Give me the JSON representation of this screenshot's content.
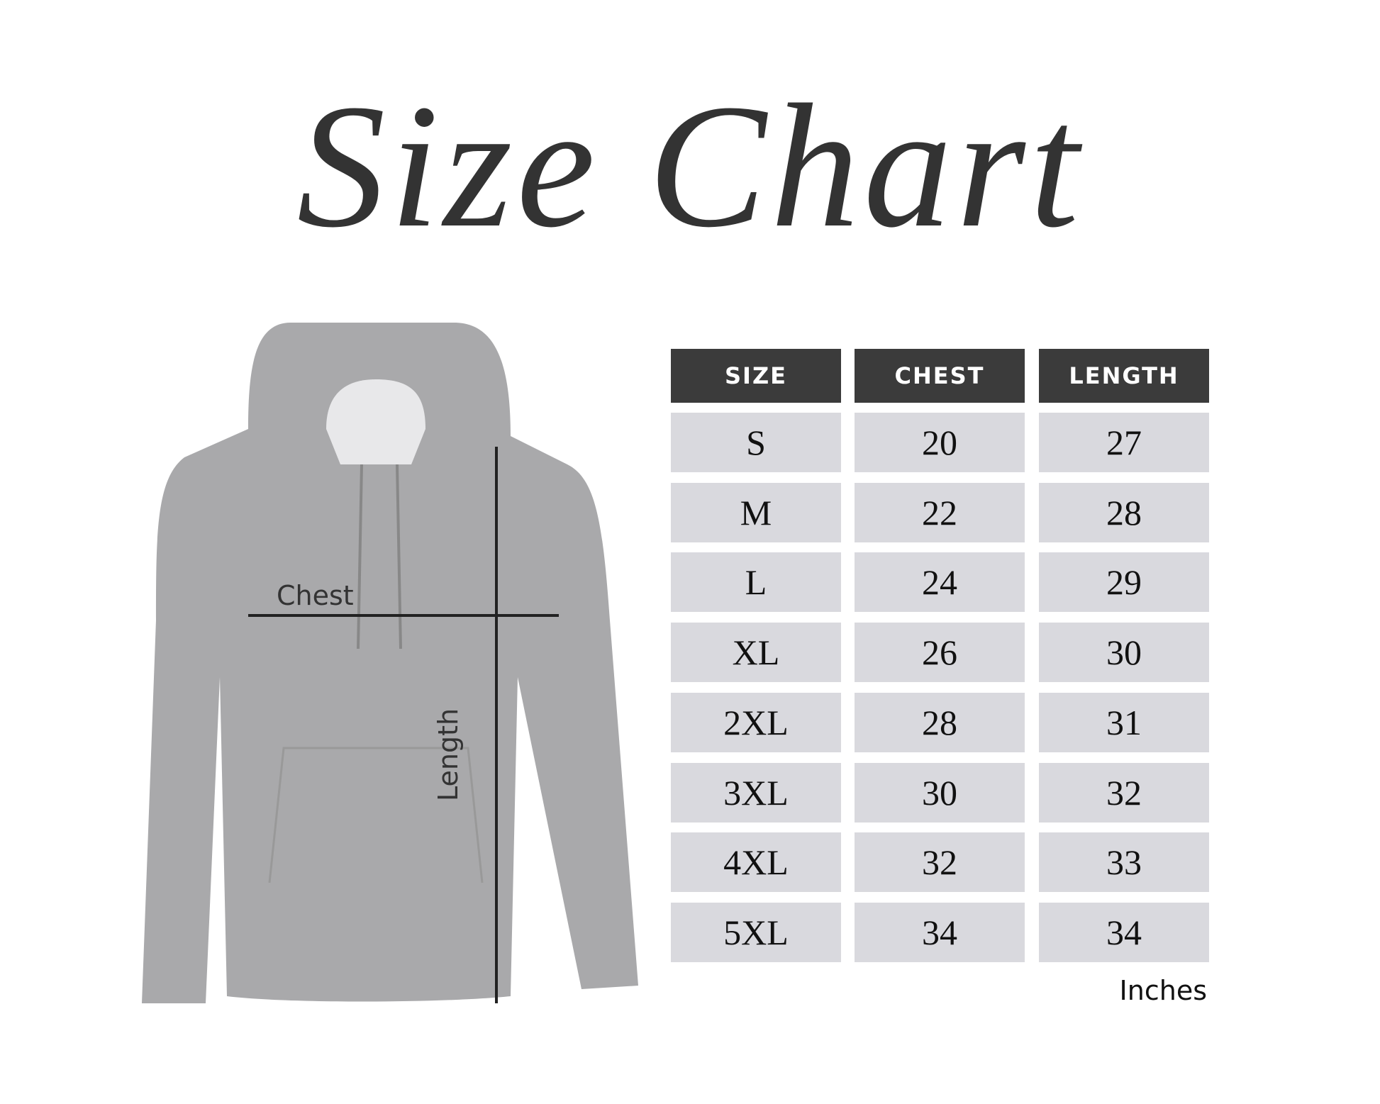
{
  "title": "Size Chart",
  "diagram": {
    "chest_label": "Chest",
    "length_label": "Length"
  },
  "table": {
    "headers": [
      "SIZE",
      "CHEST",
      "LENGTH"
    ],
    "rows": [
      [
        "S",
        "20",
        "27"
      ],
      [
        "M",
        "22",
        "28"
      ],
      [
        "L",
        "24",
        "29"
      ],
      [
        "XL",
        "26",
        "30"
      ],
      [
        "2XL",
        "28",
        "31"
      ],
      [
        "3XL",
        "30",
        "32"
      ],
      [
        "4XL",
        "32",
        "33"
      ],
      [
        "5XL",
        "34",
        "34"
      ]
    ],
    "units": "Inches"
  },
  "colors": {
    "header_bg": "#3b3b3b",
    "cell_bg": "#d9d9de",
    "hoodie": "#a9a9ab"
  }
}
